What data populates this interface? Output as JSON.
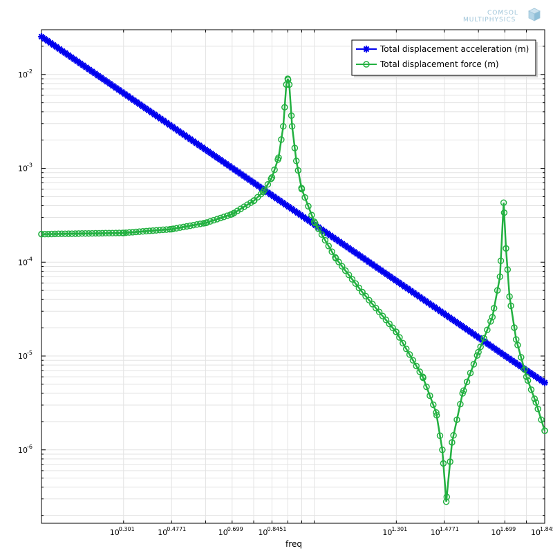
{
  "watermark": {
    "line1": "COMSOL",
    "line2": "MULTIPHYSICS"
  },
  "chart_data": {
    "type": "line",
    "title": "",
    "xlabel": "freq",
    "ylabel": "",
    "xscale": "log",
    "yscale": "log",
    "xlim": [
      1.0,
      70.0
    ],
    "ylim": [
      1.65e-07,
      0.03
    ],
    "grid": true,
    "legend_position": "top-right",
    "x_tick_labels": [
      {
        "base": "10",
        "exp": "0.301",
        "value": 2.0
      },
      {
        "base": "10",
        "exp": "0.4771",
        "value": 3.0
      },
      {
        "base": "10",
        "exp": "0.699",
        "value": 5.0
      },
      {
        "base": "10",
        "exp": "0.8451",
        "value": 7.0
      },
      {
        "base": "10",
        "exp": "1.301",
        "value": 20.0
      },
      {
        "base": "10",
        "exp": "1.4771",
        "value": 30.0
      },
      {
        "base": "10",
        "exp": "1.699",
        "value": 50.0
      },
      {
        "base": "10",
        "exp": "1.8451",
        "value": 70.0
      }
    ],
    "y_tick_labels": [
      {
        "base": "10",
        "exp": "-2",
        "value": 0.01
      },
      {
        "base": "10",
        "exp": "-3",
        "value": 0.001
      },
      {
        "base": "10",
        "exp": "-4",
        "value": 0.0001
      },
      {
        "base": "10",
        "exp": "-5",
        "value": 1e-05
      },
      {
        "base": "10",
        "exp": "-6",
        "value": 1e-06
      }
    ],
    "series": [
      {
        "name": "Total displacement acceleration (m)",
        "color": "#0000ee",
        "marker": "asterisk",
        "x": [
          1.0,
          1.5,
          2.0,
          3.0,
          5.0,
          7.0,
          10.0,
          15.0,
          20.0,
          30.0,
          50.0,
          70.0
        ],
        "y": [
          0.0253,
          0.01125,
          0.00633,
          0.00281,
          0.00101,
          0.000516,
          0.000253,
          0.0001125,
          6.33e-05,
          2.81e-05,
          1.01e-05,
          5.2e-06
        ]
      },
      {
        "name": "Total displacement force (m)",
        "color": "#22b040",
        "marker": "circle",
        "x": [
          1.0,
          2.0,
          3.0,
          4.0,
          5.0,
          6.0,
          6.5,
          7.0,
          7.4,
          7.7,
          7.9,
          8.0,
          8.1,
          8.3,
          8.6,
          9.0,
          10.0,
          12.0,
          15.0,
          20.0,
          25.0,
          28.0,
          29.5,
          30.5,
          32.0,
          35.0,
          40.0,
          45.0,
          48.0,
          49.5,
          50.5,
          52.0,
          55.0,
          60.0,
          65.0,
          70.0
        ],
        "y": [
          0.000199,
          0.000205,
          0.000225,
          0.000262,
          0.000325,
          0.00045,
          0.00056,
          0.0008,
          0.0013,
          0.0028,
          0.0078,
          0.009,
          0.0078,
          0.0028,
          0.0012,
          0.0006,
          0.00027,
          0.00011,
          4.8e-05,
          1.8e-05,
          6e-06,
          2.5e-06,
          1e-06,
          2.8e-07,
          1.2e-06,
          4e-06,
          1.1e-05,
          2.6e-05,
          7e-05,
          0.00043,
          0.00014,
          4.3e-05,
          1.5e-05,
          6e-06,
          3.2e-06,
          1.6e-06
        ]
      }
    ]
  }
}
